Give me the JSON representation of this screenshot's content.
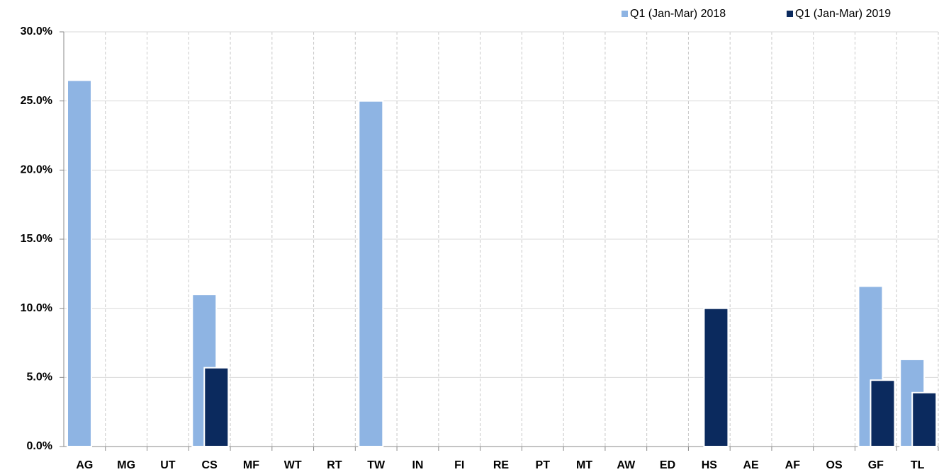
{
  "chart_data": {
    "type": "bar",
    "categories": [
      "AG",
      "MG",
      "UT",
      "CS",
      "MF",
      "WT",
      "RT",
      "TW",
      "IN",
      "FI",
      "RE",
      "PT",
      "MT",
      "AW",
      "ED",
      "HS",
      "AE",
      "AF",
      "OS",
      "GF",
      "TL"
    ],
    "series": [
      {
        "name": "Q1 (Jan-Mar) 2018",
        "color": "#8eb4e3",
        "values": [
          26.5,
          0,
          0,
          11.0,
          0,
          0,
          0,
          25.0,
          0,
          0,
          0,
          0,
          0,
          0,
          0,
          0,
          0,
          0,
          0,
          11.6,
          6.3
        ]
      },
      {
        "name": "Q1 (Jan-Mar) 2019",
        "color": "#0b2a5e",
        "values": [
          0,
          0,
          0,
          5.7,
          0,
          0,
          0,
          0,
          0,
          0,
          0,
          0,
          0,
          0,
          0,
          10.0,
          0,
          0,
          0,
          4.8,
          3.9
        ]
      }
    ],
    "ylim": [
      0,
      30
    ],
    "yticks": [
      {
        "value": 0,
        "label": "0.0%"
      },
      {
        "value": 5,
        "label": "5.0%"
      },
      {
        "value": 10,
        "label": "10.0%"
      },
      {
        "value": 15,
        "label": "15.0%"
      },
      {
        "value": 20,
        "label": "20.0%"
      },
      {
        "value": 25,
        "label": "25.0%"
      },
      {
        "value": 30,
        "label": "30.0%"
      }
    ],
    "grid": true,
    "legend": "top-right"
  }
}
